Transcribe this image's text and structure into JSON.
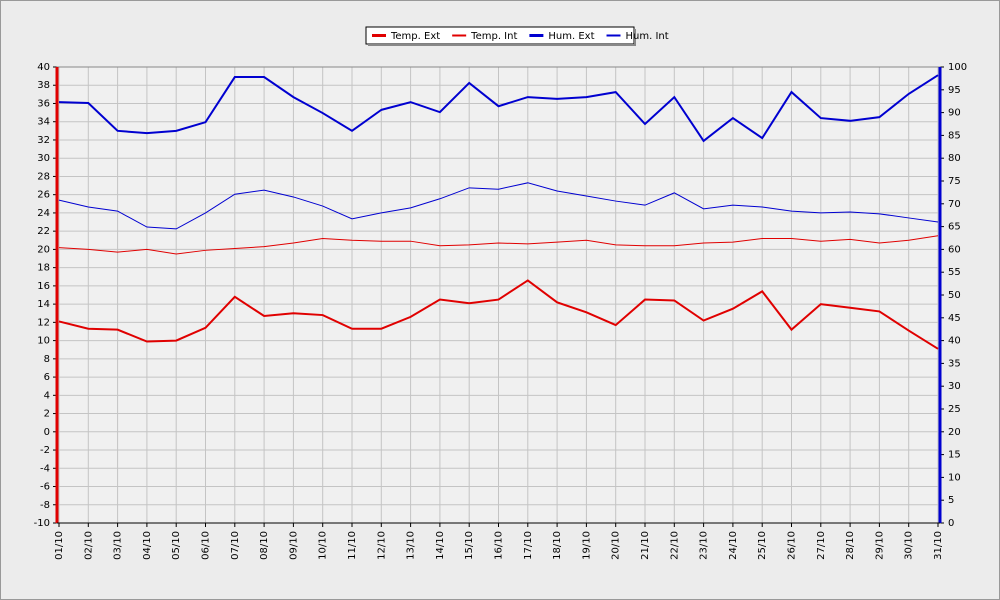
{
  "chart_data": {
    "type": "line",
    "categories": [
      "01/10",
      "02/10",
      "03/10",
      "04/10",
      "05/10",
      "06/10",
      "07/10",
      "08/10",
      "09/10",
      "10/10",
      "11/10",
      "12/10",
      "13/10",
      "14/10",
      "15/10",
      "16/10",
      "17/10",
      "18/10",
      "19/10",
      "20/10",
      "21/10",
      "22/10",
      "23/10",
      "24/10",
      "25/10",
      "26/10",
      "27/10",
      "28/10",
      "29/10",
      "30/10",
      "31/10"
    ],
    "series": [
      {
        "name": "Temp. Ext",
        "color": "#e00000",
        "width": 2,
        "values": [
          12.1,
          11.3,
          11.2,
          9.9,
          10.0,
          11.4,
          14.8,
          12.7,
          13.0,
          12.8,
          11.3,
          11.3,
          12.6,
          14.5,
          14.1,
          14.5,
          16.6,
          14.2,
          13.1,
          11.7,
          14.5,
          14.4,
          12.2,
          13.5,
          15.4,
          11.2,
          14.0,
          13.6,
          13.2,
          11.1,
          9.1
        ]
      },
      {
        "name": "Temp. Int",
        "color": "#e00000",
        "width": 1,
        "values": [
          20.2,
          20.0,
          19.7,
          20.0,
          19.5,
          19.9,
          20.1,
          20.3,
          20.7,
          21.2,
          21.0,
          20.9,
          20.9,
          20.4,
          20.5,
          20.7,
          20.6,
          20.8,
          21.0,
          20.5,
          20.4,
          20.4,
          20.7,
          20.8,
          21.2,
          21.2,
          20.9,
          21.1,
          20.7,
          21.0,
          21.5
        ]
      },
      {
        "name": "Hum. Ext",
        "color": "#0000d0",
        "width": 2,
        "axis": "y2",
        "values": [
          92.3,
          92.1,
          86.0,
          85.5,
          86.0,
          87.9,
          97.8,
          97.8,
          93.4,
          89.9,
          86.0,
          90.6,
          92.3,
          90.1,
          96.5,
          91.4,
          93.4,
          93.0,
          93.4,
          94.5,
          87.5,
          93.4,
          83.8,
          88.8,
          84.4,
          94.5,
          88.8,
          88.2,
          89.0,
          94.1,
          98.2
        ]
      },
      {
        "name": "Hum. Int",
        "color": "#0000d0",
        "width": 1,
        "axis": "y2",
        "values": [
          70.8,
          69.3,
          68.4,
          64.9,
          64.5,
          68.0,
          72.1,
          73.0,
          71.5,
          69.5,
          66.7,
          68.0,
          69.1,
          71.1,
          73.5,
          73.2,
          74.6,
          72.8,
          71.7,
          70.6,
          69.7,
          72.4,
          68.9,
          69.7,
          69.3,
          68.4,
          68.0,
          68.2,
          67.8,
          66.9,
          66.0
        ]
      }
    ],
    "ylim": [
      -10,
      40
    ],
    "yticks": [
      -10,
      -8,
      -6,
      -4,
      -2,
      0,
      2,
      4,
      6,
      8,
      10,
      12,
      14,
      16,
      18,
      20,
      22,
      24,
      26,
      28,
      30,
      32,
      34,
      36,
      38,
      40
    ],
    "y2lim": [
      0,
      100
    ],
    "y2ticks": [
      0,
      5,
      10,
      15,
      20,
      25,
      30,
      35,
      40,
      45,
      50,
      55,
      60,
      65,
      70,
      75,
      80,
      85,
      90,
      95,
      100
    ],
    "grid": true,
    "legend": "top"
  }
}
